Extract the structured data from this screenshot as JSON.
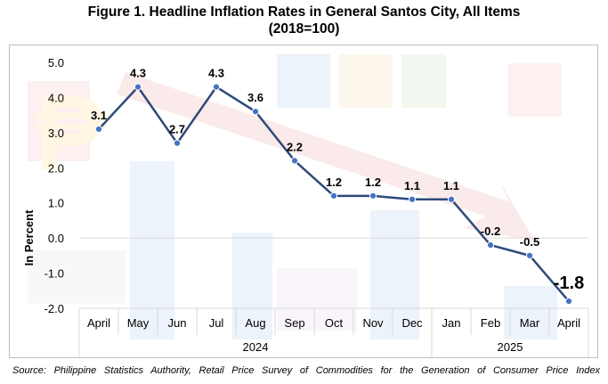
{
  "title_line1": "Figure 1. Headline Inflation Rates in General Santos City, All Items",
  "title_line2": "(2018=100)",
  "source": "Source: Philippine Statistics Authority, Retail Price Survey of Commodities for the Generation of Consumer Price Index",
  "chart_data": {
    "type": "line",
    "categories": [
      "April",
      "May",
      "Jun",
      "Jul",
      "Aug",
      "Sep",
      "Oct",
      "Nov",
      "Dec",
      "Jan",
      "Feb",
      "Mar",
      "April"
    ],
    "years": [
      {
        "label": "2024",
        "from": 0,
        "to": 8
      },
      {
        "label": "2025",
        "from": 9,
        "to": 12
      }
    ],
    "series": [
      {
        "values": [
          3.1,
          4.3,
          2.7,
          4.3,
          3.6,
          2.2,
          1.2,
          1.2,
          1.1,
          1.1,
          -0.2,
          -0.5,
          -1.8
        ],
        "data_labels": [
          "3.1",
          "4.3",
          "2.7",
          "4.3",
          "3.6",
          "2.2",
          "1.2",
          "1.2",
          "1.1",
          "1.1",
          "-0.2",
          "-0.5",
          "-1.8"
        ],
        "color": "#2e4a7a",
        "marker_color": "#4472c4"
      }
    ],
    "ylabel": "In Percent",
    "yticks": [
      "5.0",
      "4.0",
      "3.0",
      "2.0",
      "1.0",
      "0.0",
      "-1.0",
      "-2.0"
    ],
    "ylim": [
      -2.0,
      5.0
    ],
    "grid": false,
    "legend": "none"
  }
}
